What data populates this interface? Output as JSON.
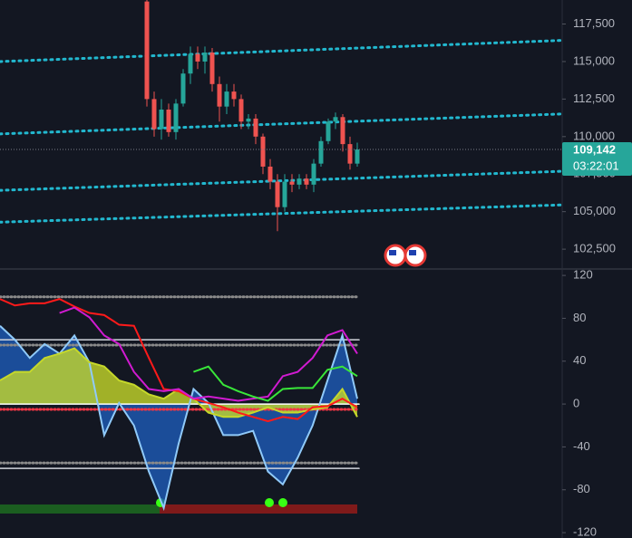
{
  "chart_data": [
    {
      "type": "candlestick",
      "open": [
        119000,
        112500,
        110500,
        111800,
        110300,
        112200,
        114200,
        115500,
        115000,
        115600,
        113500,
        112000,
        113000,
        112500,
        111000,
        111200,
        110000,
        108000,
        107000,
        105300,
        107000,
        106800,
        107200,
        106800,
        108200,
        109700,
        111000,
        111300,
        109500,
        108200
      ],
      "high": [
        119200,
        113000,
        112500,
        112200,
        112500,
        114500,
        116000,
        116000,
        116000,
        115900,
        114000,
        113500,
        113500,
        112800,
        111500,
        111500,
        110200,
        108500,
        107500,
        107500,
        107500,
        107500,
        107500,
        108500,
        110000,
        111200,
        111600,
        111500,
        110000,
        109600
      ],
      "low": [
        112000,
        110000,
        109800,
        110000,
        109800,
        112000,
        113500,
        114500,
        114200,
        113000,
        111000,
        111500,
        112000,
        110500,
        110500,
        109500,
        107500,
        106500,
        103700,
        105000,
        106300,
        106500,
        106500,
        106300,
        108000,
        109500,
        110500,
        109000,
        107800,
        108000
      ],
      "close": [
        112500,
        110500,
        111800,
        110300,
        112200,
        114200,
        115500,
        115000,
        115600,
        113500,
        112000,
        113000,
        112500,
        111000,
        111200,
        110000,
        108000,
        107000,
        105300,
        107000,
        106800,
        107200,
        106800,
        108200,
        109700,
        111000,
        111300,
        109500,
        108200,
        109142
      ],
      "up_color": "#26a69a",
      "down_color": "#ef5350",
      "ylim": [
        101300,
        119100
      ],
      "yticks": [
        {
          "value": 102500,
          "label": "102,500"
        },
        {
          "value": 105000,
          "label": "105,000"
        },
        {
          "value": 107500,
          "label": "107,500"
        },
        {
          "value": 110000,
          "label": "110,000"
        },
        {
          "value": 112500,
          "label": "112,500"
        },
        {
          "value": 115000,
          "label": "115,000"
        },
        {
          "value": 117500,
          "label": "117,500"
        }
      ],
      "channels": {
        "color": "#22b8cf",
        "values": [
          [
            115000,
            116410
          ],
          [
            110180,
            111510
          ],
          [
            106420,
            107690
          ],
          [
            104300,
            105450
          ]
        ]
      },
      "last_price": {
        "value": 109142,
        "label": "109,142"
      },
      "countdown": "03:22:01"
    },
    {
      "type": "oscillator",
      "ylim": [
        -125,
        126
      ],
      "yticks": [
        -120,
        -80,
        -40,
        0,
        40,
        80,
        120
      ],
      "levels": [
        {
          "value": 100,
          "color": "#8a8a8a",
          "dotted": true
        },
        {
          "value": 60,
          "color": "#d1d4dc",
          "dotted": false
        },
        {
          "value": 55,
          "color": "#8a8a8a",
          "dotted": true
        },
        {
          "value": 0,
          "color": "#ffffff",
          "dotted": false
        },
        {
          "value": -5,
          "color": "#f23645",
          "dotted": true
        },
        {
          "value": -55,
          "color": "#8a8a8a",
          "dotted": true
        },
        {
          "value": -60,
          "color": "#d1d4dc",
          "dotted": false
        }
      ],
      "series": [
        {
          "color": "#1e5bb8",
          "stroke": "#90caf9",
          "fill": true,
          "values": [
            73,
            60,
            43,
            56,
            47,
            64,
            39,
            -29,
            1,
            -20,
            -63,
            -97,
            -37,
            14,
            1,
            -29,
            -29,
            -25,
            -63,
            -75,
            -50,
            -20,
            22,
            64,
            5
          ]
        },
        {
          "color": "#c6d82a",
          "stroke": "#c6d82a",
          "fill": true,
          "values": [
            22,
            30,
            30,
            43,
            47,
            52,
            39,
            35,
            22,
            18,
            9,
            5,
            14,
            5,
            -8,
            -12,
            -12,
            -8,
            -3,
            -8,
            -8,
            -5,
            -3,
            14,
            -12
          ]
        },
        {
          "color": "#ff1a1a",
          "fill": false,
          "values": [
            98,
            92,
            94,
            94,
            98,
            91,
            85,
            83,
            74,
            73,
            43,
            14,
            12,
            5,
            1,
            -3,
            -8,
            -12,
            -16,
            -12,
            -14,
            -3,
            -2,
            5,
            -3
          ]
        },
        {
          "color": "#d11ad1",
          "fill": false,
          "values": [
            null,
            null,
            null,
            null,
            85,
            90,
            81,
            64,
            56,
            30,
            14,
            12,
            14,
            5,
            7,
            5,
            3,
            5,
            7,
            26,
            30,
            43,
            64,
            69,
            47
          ]
        },
        {
          "color": "#39e639",
          "fill": false,
          "values": [
            null,
            null,
            null,
            null,
            null,
            null,
            null,
            null,
            null,
            null,
            null,
            null,
            null,
            30,
            35,
            18,
            12,
            7,
            3,
            14,
            15,
            15,
            32,
            35,
            26
          ]
        }
      ]
    }
  ]
}
